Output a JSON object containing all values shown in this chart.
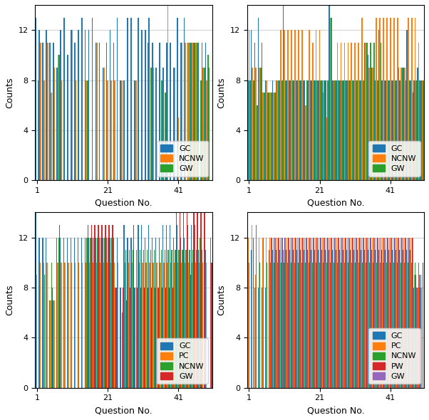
{
  "subplot_configs": [
    {
      "legend": [
        "GC",
        "NCNW",
        "GW"
      ],
      "colors": [
        "#1f77b4",
        "#ff7f0e",
        "#2ca02c"
      ],
      "n_questions": 50,
      "series": {
        "gc": [
          13,
          12,
          11,
          12,
          11,
          11,
          9,
          12,
          13,
          10,
          12,
          11,
          12,
          13,
          12,
          12,
          13,
          11,
          11,
          9,
          11,
          12,
          11,
          13,
          8,
          8,
          13,
          13,
          8,
          13,
          12,
          12,
          13,
          11,
          9,
          11,
          9,
          11,
          11,
          9,
          13,
          11,
          13,
          11,
          11,
          11,
          11,
          11,
          11,
          9
        ],
        "ncnw": [
          0,
          11,
          8,
          11,
          7,
          9,
          10,
          8,
          0,
          0,
          12,
          8,
          0,
          0,
          8,
          0,
          0,
          11,
          0,
          9,
          8,
          8,
          8,
          0,
          8,
          0,
          0,
          0,
          8,
          0,
          0,
          0,
          0,
          9,
          0,
          0,
          0,
          14,
          0,
          9,
          5,
          11,
          11,
          11,
          11,
          11,
          0,
          9,
          8,
          0
        ],
        "gw": [
          8,
          0,
          0,
          0,
          0,
          0,
          10,
          0,
          0,
          0,
          0,
          0,
          0,
          0,
          8,
          0,
          0,
          0,
          0,
          0,
          0,
          0,
          0,
          0,
          0,
          0,
          0,
          0,
          0,
          0,
          0,
          11,
          9,
          0,
          0,
          8,
          7,
          0,
          0,
          0,
          0,
          0,
          0,
          11,
          11,
          11,
          8,
          9,
          10,
          0
        ]
      }
    },
    {
      "legend": [
        "GC",
        "NCNW",
        "GW"
      ],
      "colors": [
        "#1f77b4",
        "#ff7f0e",
        "#2ca02c"
      ],
      "n_questions": 50,
      "series": {
        "gc": [
          8,
          12,
          11,
          13,
          11,
          8,
          7,
          8,
          8,
          8,
          14,
          8,
          8,
          8,
          8,
          8,
          8,
          8,
          8,
          8,
          8,
          8,
          8,
          14,
          8,
          8,
          8,
          8,
          8,
          8,
          8,
          8,
          8,
          11,
          10,
          9,
          8,
          12,
          8,
          8,
          8,
          8,
          8,
          8,
          9,
          12,
          8,
          8,
          9,
          8
        ],
        "ncnw": [
          12,
          9,
          9,
          9,
          7,
          8,
          7,
          7,
          8,
          12,
          12,
          12,
          12,
          12,
          12,
          12,
          6,
          12,
          11,
          12,
          12,
          7,
          5,
          13,
          8,
          11,
          11,
          11,
          11,
          11,
          11,
          11,
          13,
          11,
          9,
          9,
          13,
          13,
          13,
          13,
          13,
          13,
          13,
          9,
          9,
          13,
          13,
          13,
          11,
          8
        ],
        "gw": [
          8,
          8,
          6,
          9,
          7,
          7,
          7,
          7,
          8,
          8,
          8,
          8,
          8,
          8,
          8,
          8,
          8,
          8,
          8,
          8,
          8,
          8,
          8,
          13,
          8,
          8,
          8,
          8,
          8,
          8,
          8,
          8,
          8,
          11,
          11,
          11,
          8,
          11,
          8,
          8,
          8,
          8,
          9,
          9,
          8,
          8,
          7,
          8,
          8,
          8
        ]
      }
    },
    {
      "legend": [
        "GC",
        "PC",
        "NCNW",
        "GW"
      ],
      "colors": [
        "#1f77b4",
        "#ff7f0e",
        "#2ca02c",
        "#d62728"
      ],
      "n_questions": 50,
      "series": {
        "gc": [
          14,
          12,
          12,
          12,
          7,
          7,
          12,
          12,
          12,
          12,
          12,
          12,
          12,
          12,
          12,
          12,
          12,
          12,
          12,
          12,
          12,
          12,
          12,
          12,
          8,
          13,
          12,
          12,
          8,
          13,
          13,
          12,
          13,
          12,
          12,
          12,
          13,
          13,
          13,
          12,
          13,
          12,
          12,
          13,
          13,
          13,
          11,
          11,
          11,
          0
        ],
        "pc": [
          9,
          10,
          10,
          10,
          7,
          7,
          10,
          10,
          10,
          10,
          10,
          10,
          10,
          10,
          10,
          10,
          10,
          10,
          10,
          10,
          10,
          10,
          10,
          10,
          0,
          10,
          10,
          10,
          0,
          10,
          10,
          10,
          10,
          10,
          10,
          10,
          10,
          10,
          10,
          10,
          10,
          10,
          10,
          10,
          10,
          10,
          10,
          10,
          10,
          0
        ],
        "ncnw": [
          0,
          0,
          9,
          0,
          10,
          0,
          12,
          0,
          0,
          0,
          0,
          0,
          0,
          0,
          12,
          12,
          12,
          12,
          12,
          12,
          12,
          12,
          8,
          0,
          6,
          11,
          11,
          11,
          11,
          11,
          11,
          11,
          11,
          11,
          8,
          11,
          11,
          11,
          11,
          11,
          11,
          11,
          11,
          11,
          11,
          11,
          12,
          0,
          0,
          12
        ],
        "gw": [
          0,
          0,
          0,
          0,
          8,
          0,
          13,
          0,
          0,
          0,
          0,
          0,
          0,
          0,
          13,
          13,
          13,
          13,
          13,
          13,
          13,
          13,
          8,
          0,
          8,
          7,
          8,
          13,
          8,
          8,
          8,
          8,
          8,
          8,
          8,
          8,
          8,
          8,
          8,
          14,
          14,
          14,
          14,
          9,
          14,
          14,
          14,
          14,
          0,
          10
        ]
      }
    },
    {
      "legend": [
        "GC",
        "PC",
        "NCNW",
        "PW",
        "GW"
      ],
      "colors": [
        "#1f77b4",
        "#ff7f0e",
        "#2ca02c",
        "#d62728",
        "#9467bd"
      ],
      "n_questions": 50,
      "series": {
        "gc": [
          12,
          11,
          8,
          8,
          8,
          8,
          11,
          11,
          11,
          11,
          11,
          11,
          11,
          11,
          11,
          11,
          11,
          11,
          11,
          11,
          11,
          11,
          11,
          11,
          11,
          11,
          11,
          11,
          11,
          11,
          11,
          11,
          11,
          11,
          11,
          11,
          11,
          11,
          11,
          11,
          11,
          11,
          11,
          11,
          11,
          11,
          11,
          8,
          8,
          9
        ],
        "pc": [
          12,
          13,
          9,
          12,
          12,
          12,
          12,
          12,
          12,
          12,
          12,
          12,
          12,
          12,
          12,
          12,
          12,
          12,
          12,
          12,
          12,
          12,
          12,
          12,
          12,
          12,
          12,
          12,
          12,
          12,
          12,
          12,
          12,
          12,
          12,
          12,
          12,
          12,
          12,
          12,
          12,
          12,
          12,
          12,
          12,
          12,
          12,
          9,
          8,
          8
        ],
        "ncnw": [
          10,
          0,
          13,
          10,
          12,
          10,
          10,
          10,
          10,
          10,
          10,
          10,
          10,
          10,
          10,
          10,
          10,
          10,
          10,
          10,
          10,
          10,
          10,
          10,
          10,
          10,
          10,
          10,
          10,
          10,
          10,
          10,
          10,
          10,
          10,
          10,
          10,
          10,
          10,
          10,
          10,
          10,
          10,
          10,
          10,
          10,
          10,
          10,
          10,
          0
        ],
        "pw": [
          0,
          12,
          0,
          0,
          0,
          0,
          12,
          12,
          12,
          12,
          12,
          12,
          12,
          12,
          12,
          12,
          12,
          12,
          12,
          12,
          12,
          12,
          12,
          12,
          12,
          12,
          12,
          12,
          12,
          12,
          12,
          12,
          12,
          12,
          12,
          12,
          12,
          12,
          12,
          12,
          12,
          12,
          12,
          12,
          12,
          12,
          12,
          9,
          9,
          10
        ],
        "gw": [
          0,
          0,
          0,
          0,
          0,
          0,
          12,
          12,
          12,
          12,
          12,
          12,
          12,
          12,
          12,
          12,
          12,
          12,
          12,
          12,
          12,
          12,
          12,
          12,
          12,
          12,
          12,
          12,
          12,
          12,
          12,
          12,
          12,
          12,
          12,
          12,
          12,
          12,
          12,
          12,
          12,
          12,
          12,
          12,
          12,
          12,
          12,
          8,
          8,
          0
        ]
      }
    }
  ],
  "series_keys_order": [
    [
      "gc",
      "ncnw",
      "gw"
    ],
    [
      "gc",
      "ncnw",
      "gw"
    ],
    [
      "gc",
      "pc",
      "ncnw",
      "gw"
    ],
    [
      "gc",
      "pc",
      "ncnw",
      "pw",
      "gw"
    ]
  ],
  "ylim": [
    0,
    14
  ],
  "yticks": [
    0,
    4,
    8,
    12
  ],
  "xticks": [
    1,
    21,
    41
  ],
  "xlabel": "Question No.",
  "ylabel": "Counts",
  "figsize": [
    6.02,
    5.9
  ],
  "dpi": 100
}
